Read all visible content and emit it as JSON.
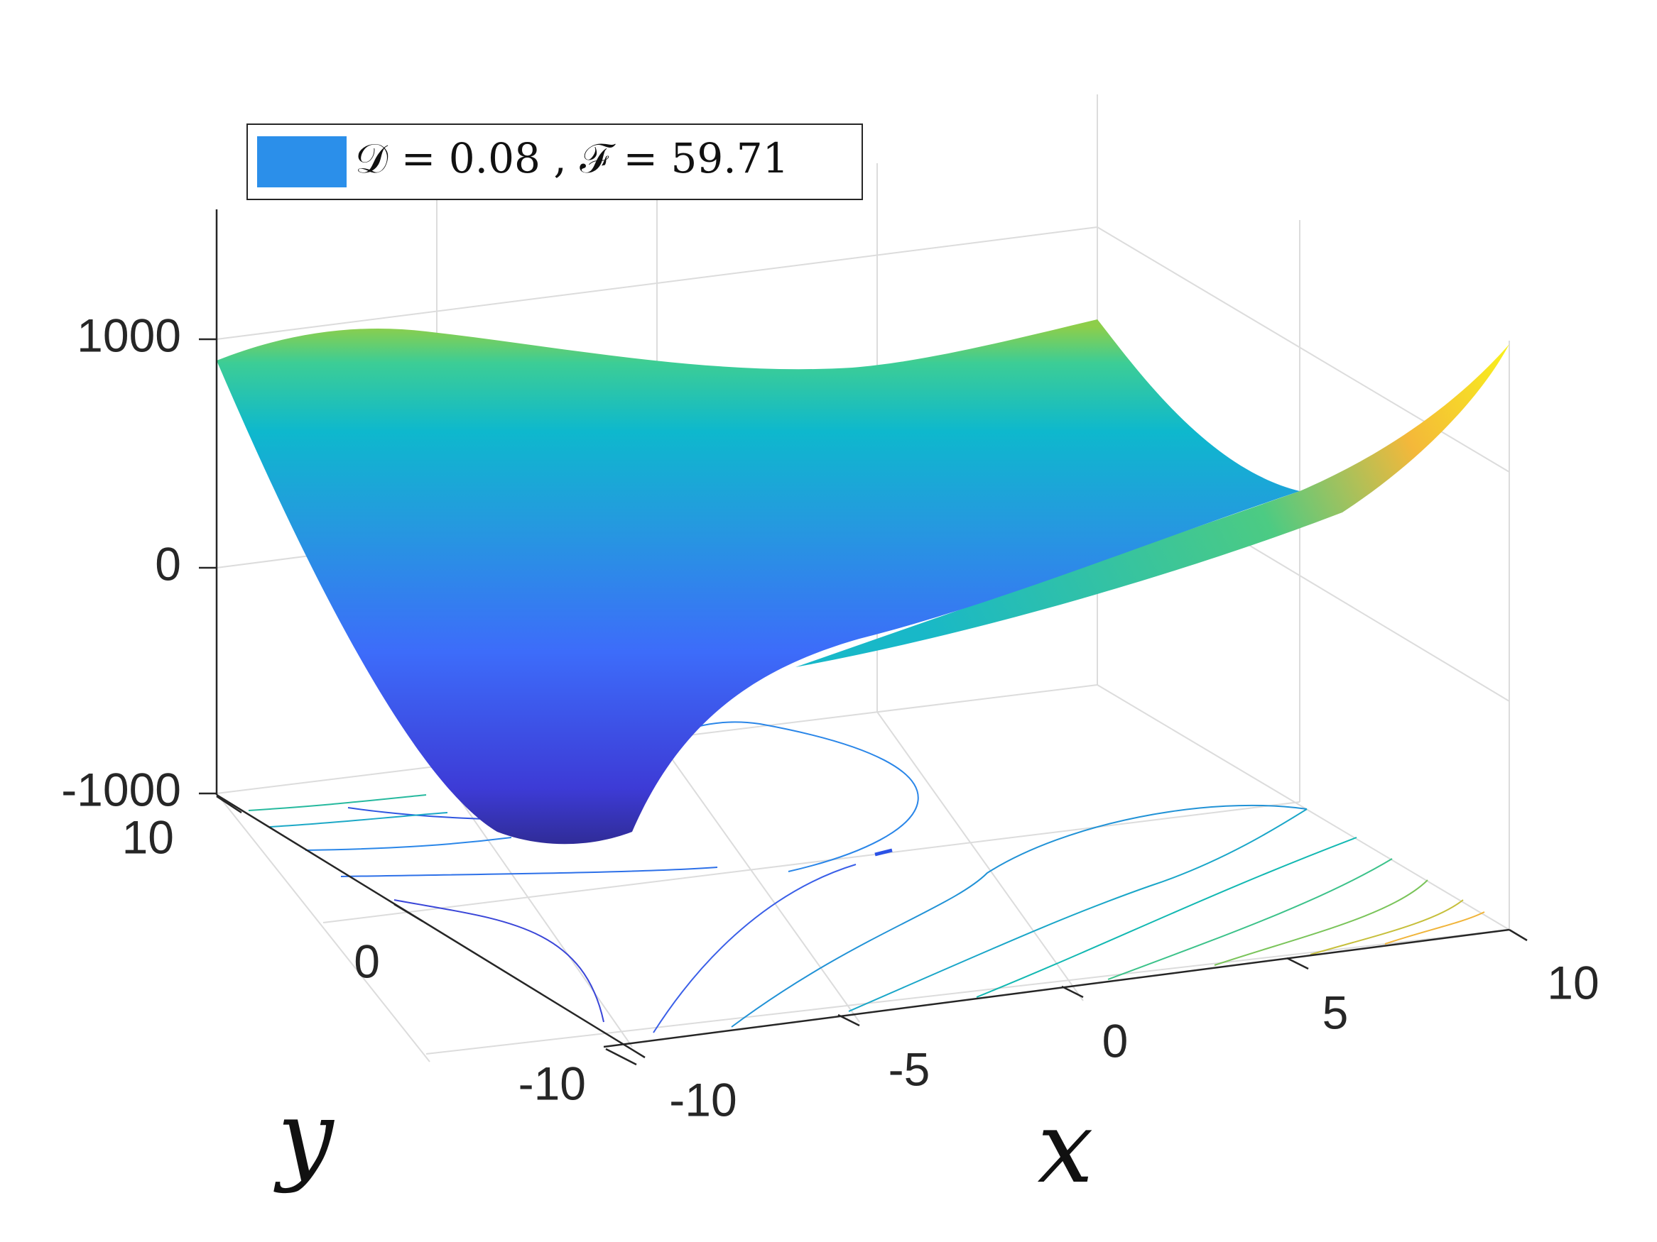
{
  "chart_data": {
    "type": "surface",
    "title": "",
    "xlabel": "x",
    "ylabel": "y",
    "zlabel": "",
    "x_ticks": [
      "-10",
      "-5",
      "0",
      "5",
      "10"
    ],
    "y_ticks": [
      "-10",
      "0",
      "10"
    ],
    "z_ticks": [
      "-1000",
      "0",
      "1000"
    ],
    "xlim": [
      -10,
      10
    ],
    "ylim": [
      -10,
      10
    ],
    "zlim": [
      -1000,
      1500
    ],
    "colormap": "parula",
    "grid": true,
    "contours_on_floor": true,
    "legend": {
      "placement": "top-left",
      "swatch_color": "#2b8fea",
      "text": "𝒟 = 0.08 ,  ℱ = 59.71"
    },
    "surface_samples": [
      {
        "x": -10,
        "y": 10,
        "z": 990
      },
      {
        "x": 0,
        "y": 10,
        "z": 1000
      },
      {
        "x": 10,
        "y": 10,
        "z": 1050
      },
      {
        "x": 10,
        "y": 0,
        "z": 220
      },
      {
        "x": 10,
        "y": -10,
        "z": 1040
      },
      {
        "x": 0,
        "y": -10,
        "z": -420
      },
      {
        "x": -10,
        "y": -10,
        "z": -995
      },
      {
        "x": -10,
        "y": 0,
        "z": -620
      }
    ]
  }
}
